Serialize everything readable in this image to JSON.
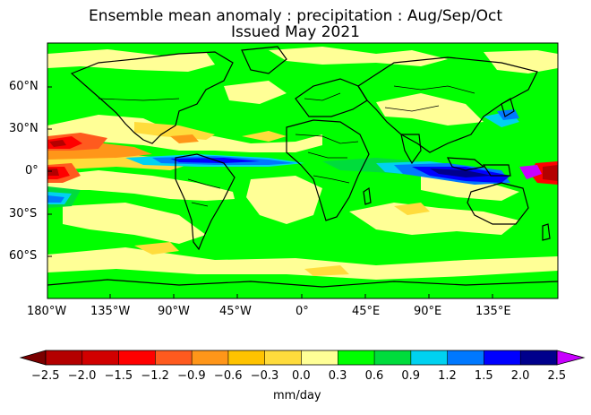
{
  "title": {
    "line1": "Ensemble mean anomaly : precipitation : Aug/Sep/Oct",
    "line2": "Issued May 2021"
  },
  "map": {
    "variable": "precipitation anomaly",
    "projection": "equirectangular",
    "lat_labels": [
      "60°N",
      "30°N",
      "0°",
      "30°S",
      "60°S"
    ],
    "lon_labels": [
      "180°W",
      "135°W",
      "90°W",
      "45°W",
      "0°",
      "45°E",
      "90°E",
      "135°E"
    ],
    "background_color": "#00ff00",
    "coastline_color": "#000000"
  },
  "colorbar": {
    "unit_label": "mm/day",
    "tick_labels": [
      "−2.5",
      "−2.0",
      "−1.5",
      "−1.2",
      "−0.9",
      "−0.6",
      "−0.3",
      "0.0",
      "0.3",
      "0.6",
      "0.9",
      "1.2",
      "1.5",
      "2.0",
      "2.5"
    ],
    "colors": [
      "#b40000",
      "#d10000",
      "#ff0000",
      "#ff5a1e",
      "#ff9619",
      "#ffc300",
      "#ffdc3c",
      "#ffff96",
      "#00ff00",
      "#00dc3c",
      "#00d2f0",
      "#0078ff",
      "#0000ff",
      "#00008c",
      "#000050",
      "#c800ff"
    ],
    "low_extend_color": "#7a0000",
    "high_extend_color": "#c800ff"
  }
}
